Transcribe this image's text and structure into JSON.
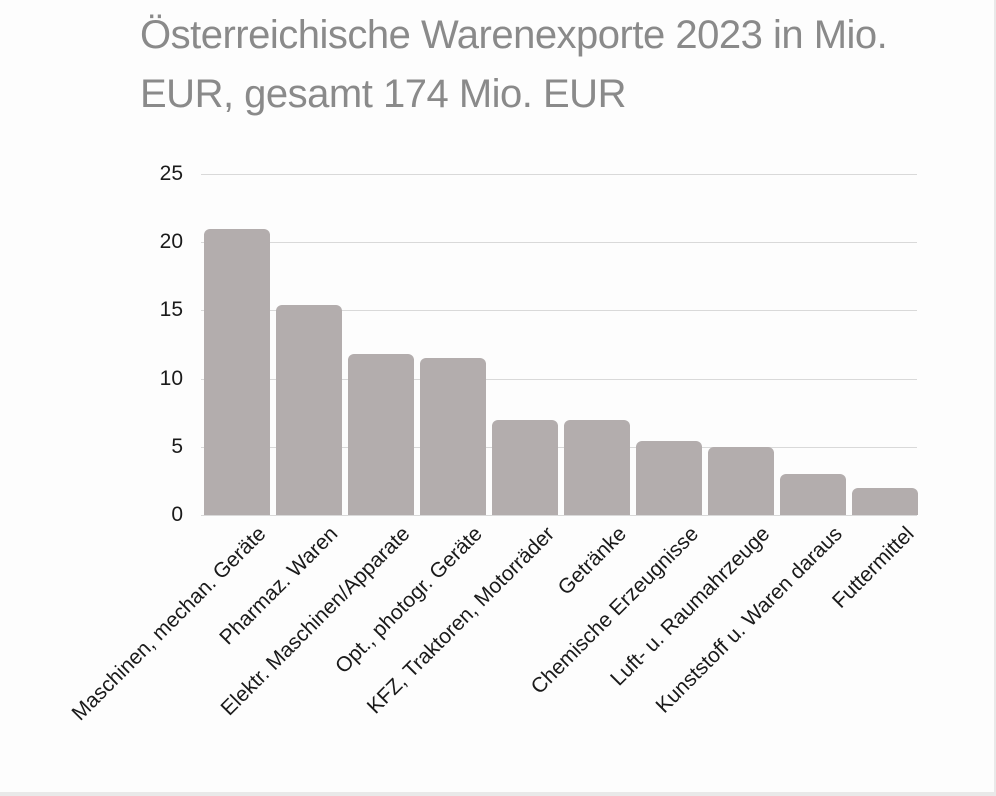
{
  "header": {
    "title_line1": "Österreichische Warenexporte 2023 in Mio.",
    "title_line2": "EUR, gesamt 174 Mio. EUR"
  },
  "colors": {
    "title": "#8a8a8a",
    "axis_labels": "#1a1a1a",
    "bar": "#b3adad",
    "gridline": "#d9d9d9",
    "background": "#fdfdfd",
    "edge": "#e9e9e9"
  },
  "chart_data": {
    "type": "bar",
    "title": "Österreichische Warenexporte 2023 in Mio. EUR, gesamt 174 Mio. EUR",
    "unit": "Mio. EUR",
    "total": 174,
    "categories": [
      "Maschinen, mechan. Geräte",
      "Pharmaz. Waren",
      "Elektr. Maschinen/Apparate",
      "Opt., photogr. Geräte",
      "KFZ, Traktoren, Motorräder",
      "Getränke",
      "Chemische Erzeugnisse",
      "Luft- u. Raumahrzeuge",
      "Kunststoff u. Waren daraus",
      "Futtermittel"
    ],
    "values": [
      21,
      15.4,
      11.8,
      11.5,
      7,
      7,
      5.4,
      5,
      3,
      2
    ],
    "xlabel": "",
    "ylabel": "",
    "ylim": [
      0,
      25
    ],
    "yticks": [
      0,
      5,
      10,
      15,
      20,
      25
    ],
    "grid": true,
    "legend": false
  }
}
